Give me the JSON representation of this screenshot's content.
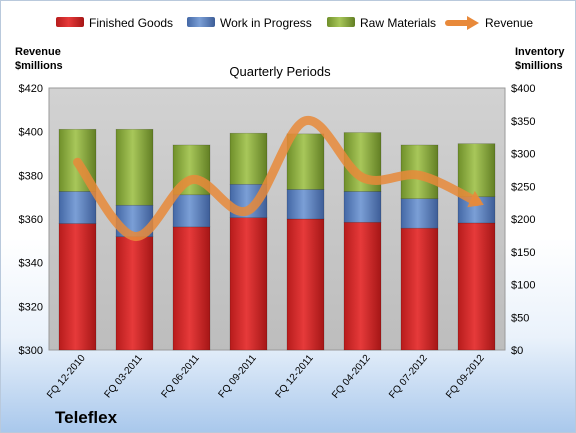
{
  "company": "Teleflex",
  "colors": {
    "finished_goods": "#d42a2a",
    "work_in_progress": "#5a7fbf",
    "raw_materials": "#8faf3f",
    "revenue": "#e8893a",
    "plot_bg": "#c8c8c8"
  },
  "chart_data": {
    "type": "bar",
    "subtitle": "Quarterly Periods",
    "stacked": true,
    "categories": [
      "FQ 12-2010",
      "FQ 03-2011",
      "FQ 06-2011",
      "FQ 09-2011",
      "FQ 12-2011",
      "FQ 04-2012",
      "FQ 07-2012",
      "FQ 09-2012"
    ],
    "left_axis": {
      "title_line1": "Revenue",
      "title_line2": "$millions",
      "min": 300,
      "max": 420,
      "ticks": [
        "$300",
        "$320",
        "$340",
        "$360",
        "$380",
        "$400",
        "$420"
      ]
    },
    "right_axis": {
      "title_line1": "Inventory",
      "title_line2": "$millions",
      "min": 0,
      "max": 400,
      "ticks": [
        "$0",
        "$50",
        "$100",
        "$150",
        "$200",
        "$250",
        "$300",
        "$350",
        "$400"
      ]
    },
    "series": [
      {
        "name": "Finished Goods",
        "axis": "right",
        "values": [
          193,
          173,
          188,
          202,
          200,
          195,
          186,
          194
        ]
      },
      {
        "name": "Work in Progress",
        "axis": "right",
        "values": [
          49,
          48,
          49,
          51,
          45,
          47,
          45,
          40
        ]
      },
      {
        "name": "Raw Materials",
        "axis": "right",
        "values": [
          95,
          116,
          76,
          78,
          85,
          90,
          82,
          81
        ]
      },
      {
        "name": "Revenue",
        "type": "line",
        "axis": "left",
        "values": [
          386,
          352,
          378,
          364,
          405,
          379,
          380,
          368
        ]
      }
    ],
    "legend_position": "top",
    "grid": false
  }
}
